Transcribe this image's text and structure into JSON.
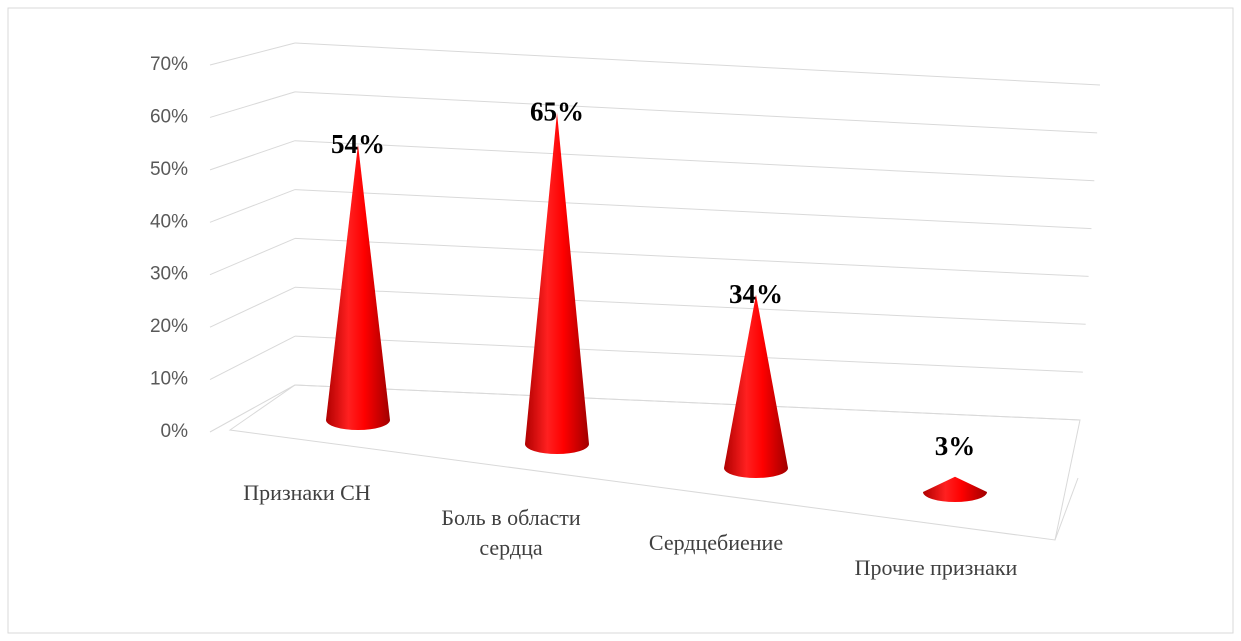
{
  "chart_data": {
    "type": "cone",
    "categories": [
      "Признаки СН",
      "Боль в области сердца",
      "Сердцебиение",
      "Прочие признаки"
    ],
    "values": [
      54,
      65,
      34,
      3
    ],
    "value_labels": [
      "54%",
      "65%",
      "34%",
      "3%"
    ],
    "color": "#ff0000",
    "ylim": [
      0,
      70
    ],
    "yticks": [
      {
        "value": 0,
        "label": "0%"
      },
      {
        "value": 10,
        "label": "10%"
      },
      {
        "value": 20,
        "label": "20%"
      },
      {
        "value": 30,
        "label": "30%"
      },
      {
        "value": 40,
        "label": "40%"
      },
      {
        "value": 50,
        "label": "50%"
      },
      {
        "value": 60,
        "label": "60%"
      },
      {
        "value": 70,
        "label": "70%"
      }
    ],
    "grid": true
  }
}
